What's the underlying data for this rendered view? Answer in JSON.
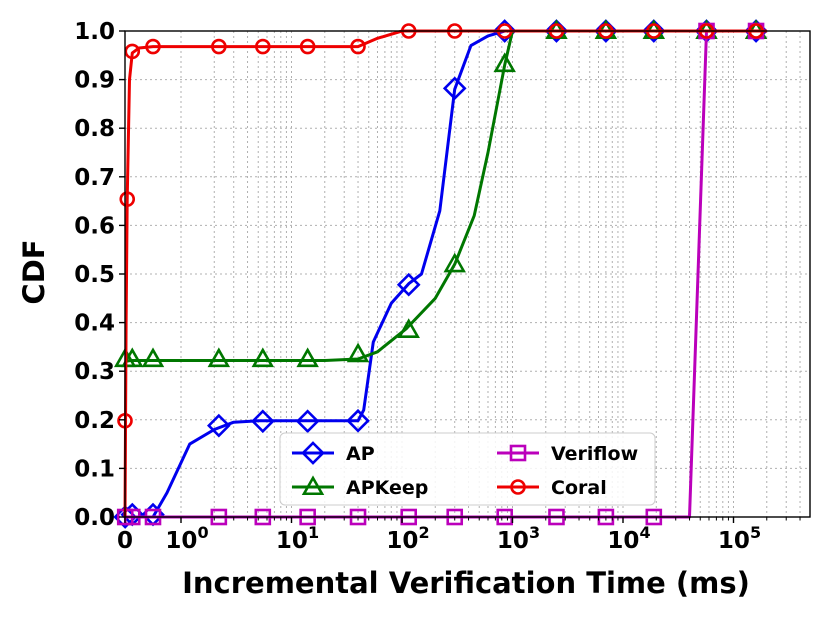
{
  "chart_data": {
    "type": "line",
    "xlabel": "Incremental Verification Time (ms)",
    "ylabel": "CDF",
    "x_scale": "symlog",
    "xlim": [
      0,
      200000
    ],
    "ylim": [
      0,
      1.0
    ],
    "grid": true,
    "legend_position": "lower-center",
    "x_tick_labels": [
      {
        "value": 0,
        "label": "0"
      },
      {
        "value": 1,
        "label": "10",
        "exp": "0"
      },
      {
        "value": 10,
        "label": "10",
        "exp": "1"
      },
      {
        "value": 100,
        "label": "10",
        "exp": "2"
      },
      {
        "value": 1000,
        "label": "10",
        "exp": "3"
      },
      {
        "value": 10000,
        "label": "10",
        "exp": "4"
      },
      {
        "value": 100000,
        "label": "10",
        "exp": "5"
      }
    ],
    "y_ticks": [
      0.0,
      0.1,
      0.2,
      0.3,
      0.4,
      0.5,
      0.6,
      0.7,
      0.8,
      0.9,
      1.0
    ],
    "y_tick_labels": [
      "0.0",
      "0.1",
      "0.2",
      "0.3",
      "0.4",
      "0.5",
      "0.6",
      "0.7",
      "0.8",
      "0.9",
      "1.0"
    ],
    "series": [
      {
        "name": "AP",
        "color": "#0000ee",
        "marker": "diamond",
        "line": [
          [
            0,
            0
          ],
          [
            0.2,
            0
          ],
          [
            0.5,
            0
          ],
          [
            0.75,
            0.05
          ],
          [
            1.2,
            0.15
          ],
          [
            2,
            0.18
          ],
          [
            3,
            0.195
          ],
          [
            5,
            0.198
          ],
          [
            20,
            0.198
          ],
          [
            40,
            0.198
          ],
          [
            45,
            0.22
          ],
          [
            55,
            0.36
          ],
          [
            80,
            0.44
          ],
          [
            115,
            0.48
          ],
          [
            150,
            0.5
          ],
          [
            220,
            0.63
          ],
          [
            300,
            0.88
          ],
          [
            420,
            0.97
          ],
          [
            600,
            0.99
          ],
          [
            850,
            1.0
          ],
          [
            200000,
            1.0
          ]
        ],
        "markers": [
          [
            0.003,
            0.0
          ],
          [
            0.13,
            0.005
          ],
          [
            0.5,
            0.005
          ],
          [
            2.2,
            0.188
          ],
          [
            5.5,
            0.197
          ],
          [
            14,
            0.197
          ],
          [
            40,
            0.198
          ],
          [
            115,
            0.478
          ],
          [
            300,
            0.882
          ],
          [
            850,
            1.0
          ],
          [
            2500,
            1.0
          ],
          [
            7000,
            1.0
          ],
          [
            19000,
            1.0
          ],
          [
            57000,
            1.0
          ],
          [
            160000,
            1.0
          ]
        ]
      },
      {
        "name": "APKeep",
        "color": "#007700",
        "marker": "triangle",
        "line": [
          [
            0,
            0.32
          ],
          [
            0.1,
            0.322
          ],
          [
            1,
            0.322
          ],
          [
            20,
            0.322
          ],
          [
            40,
            0.325
          ],
          [
            60,
            0.34
          ],
          [
            110,
            0.388
          ],
          [
            200,
            0.45
          ],
          [
            300,
            0.52
          ],
          [
            450,
            0.62
          ],
          [
            600,
            0.75
          ],
          [
            850,
            0.93
          ],
          [
            1000,
            1.0
          ],
          [
            200000,
            1.0
          ]
        ],
        "markers": [
          [
            0.004,
            0.325
          ],
          [
            0.13,
            0.325
          ],
          [
            0.5,
            0.325
          ],
          [
            2.2,
            0.325
          ],
          [
            5.5,
            0.325
          ],
          [
            14,
            0.325
          ],
          [
            40,
            0.335
          ],
          [
            115,
            0.385
          ],
          [
            300,
            0.52
          ],
          [
            850,
            0.932
          ],
          [
            2500,
            1.0
          ],
          [
            7000,
            1.0
          ],
          [
            19000,
            1.0
          ],
          [
            57000,
            1.0
          ],
          [
            160000,
            1.0
          ]
        ]
      },
      {
        "name": "Veriflow",
        "color": "#bb00bb",
        "marker": "square",
        "line": [
          [
            0,
            0
          ],
          [
            40000,
            0
          ],
          [
            57000,
            1.0
          ],
          [
            200000,
            1.0
          ]
        ],
        "markers": [
          [
            0.004,
            0.0
          ],
          [
            0.13,
            0.0
          ],
          [
            0.5,
            0.0
          ],
          [
            2.2,
            0.0
          ],
          [
            5.5,
            0.0
          ],
          [
            14,
            0.0
          ],
          [
            40,
            0.0
          ],
          [
            115,
            0.0
          ],
          [
            300,
            0.0
          ],
          [
            850,
            0.0
          ],
          [
            2500,
            0.0
          ],
          [
            7000,
            0.0
          ],
          [
            19000,
            0.0
          ],
          [
            57000,
            1.0
          ],
          [
            160000,
            1.0
          ]
        ]
      },
      {
        "name": "Coral",
        "color": "#ee0000",
        "marker": "circle",
        "line": [
          [
            0,
            0
          ],
          [
            0.02,
            0.4
          ],
          [
            0.04,
            0.654
          ],
          [
            0.08,
            0.9
          ],
          [
            0.13,
            0.955
          ],
          [
            0.25,
            0.965
          ],
          [
            0.5,
            0.968
          ],
          [
            40,
            0.968
          ],
          [
            60,
            0.985
          ],
          [
            100,
            1.0
          ],
          [
            200000,
            1.0
          ]
        ],
        "markers": [
          [
            0.0,
            0.198
          ],
          [
            0.04,
            0.654
          ],
          [
            0.13,
            0.958
          ],
          [
            0.5,
            0.968
          ],
          [
            2.2,
            0.968
          ],
          [
            5.5,
            0.968
          ],
          [
            14,
            0.968
          ],
          [
            40,
            0.968
          ],
          [
            115,
            1.0
          ],
          [
            300,
            1.0
          ],
          [
            850,
            1.0
          ],
          [
            2500,
            1.0
          ],
          [
            7000,
            1.0
          ],
          [
            19000,
            1.0
          ],
          [
            57000,
            1.0
          ],
          [
            160000,
            1.0
          ]
        ]
      }
    ]
  }
}
